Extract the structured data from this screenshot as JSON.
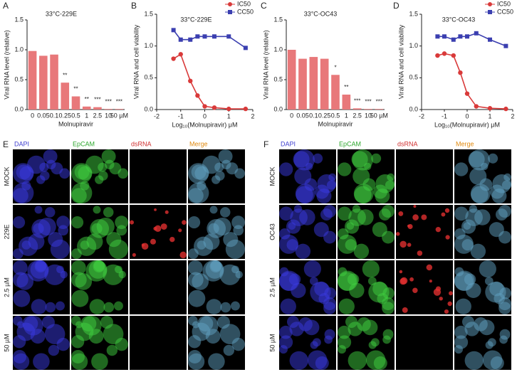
{
  "chart_data": [
    {
      "type": "bar",
      "panel_label": "A",
      "title": "33°C-229E",
      "ylabel": "Viral RNA level (relative)",
      "xlabel": "Molnupiravir",
      "categories": [
        "0",
        "0.05",
        "0.1",
        "0.25",
        "0.5",
        "1",
        "2.5",
        "10",
        "50 µM"
      ],
      "values": [
        0.98,
        0.9,
        0.92,
        0.45,
        0.22,
        0.05,
        0.04,
        0.01,
        0.01
      ],
      "annotations": [
        null,
        null,
        null,
        "**",
        "**",
        "**",
        "***",
        "***",
        "***"
      ],
      "color": "#e8787a",
      "ylim": [
        0,
        1.5
      ],
      "yticks": [
        {
          "value": 0,
          "label": "0.0"
        },
        {
          "value": 0.5,
          "label": "0.5"
        },
        {
          "value": 1,
          "label": "1.0"
        },
        {
          "value": 1.5,
          "label": "1.5"
        }
      ]
    },
    {
      "type": "scatter",
      "panel_label": "B",
      "title": "33°C-229E",
      "ylabel": "Viral RNA and cell viability",
      "xlabel": "Log₁₀(Molnupiravir) μM",
      "x": [
        -1.3,
        -1,
        -0.6,
        -0.3,
        0,
        0.4,
        1,
        1.7
      ],
      "series": [
        {
          "name": "IC50",
          "color": "#d93a3a",
          "marker": "circle",
          "values": [
            0.8,
            0.87,
            0.45,
            0.22,
            0.05,
            0.03,
            0.01,
            0.01
          ]
        },
        {
          "name": "CC50",
          "color": "#3b3fb0",
          "marker": "square",
          "values": [
            1.25,
            1.1,
            1.1,
            1.15,
            1.15,
            1.15,
            1.15,
            0.97
          ]
        }
      ],
      "legend": "upper right",
      "xlim": [
        -2,
        2
      ],
      "xticks": [
        -2,
        -1,
        0,
        1,
        2
      ],
      "ylim": [
        0,
        1.5
      ],
      "yticks": [
        {
          "value": 0,
          "label": "0.0"
        },
        {
          "value": 0.5,
          "label": "0.5"
        },
        {
          "value": 1,
          "label": "1.0"
        },
        {
          "value": 1.5,
          "label": "1.5"
        }
      ]
    },
    {
      "type": "bar",
      "panel_label": "C",
      "title": "33°C-OC43",
      "ylabel": "Viral RNA level (relative)",
      "xlabel": "Molnupiravir",
      "categories": [
        "0",
        "0.05",
        "0.1",
        "0.25",
        "0.5",
        "1",
        "2.5",
        "10",
        "50 µM"
      ],
      "values": [
        1.0,
        0.85,
        0.88,
        0.85,
        0.58,
        0.25,
        0.02,
        0.01,
        0.01
      ],
      "annotations": [
        null,
        null,
        null,
        null,
        "*",
        "**",
        "***",
        "***",
        "***"
      ],
      "color": "#e8787a",
      "ylim": [
        0,
        1.5
      ],
      "yticks": [
        {
          "value": 0,
          "label": "0.0"
        },
        {
          "value": 0.5,
          "label": "0.5"
        },
        {
          "value": 1,
          "label": "1.0"
        },
        {
          "value": 1.5,
          "label": "1.5"
        }
      ]
    },
    {
      "type": "scatter",
      "panel_label": "D",
      "title": "33°C-OC43",
      "ylabel": "Viral RNA and cell viability",
      "xlabel": "Log₁₀(Molnupiravir) μM",
      "x": [
        -1.3,
        -1,
        -0.6,
        -0.3,
        0,
        0.4,
        1,
        1.7
      ],
      "series": [
        {
          "name": "IC50",
          "color": "#d93a3a",
          "marker": "circle",
          "values": [
            0.85,
            0.88,
            0.85,
            0.58,
            0.25,
            0.05,
            0.02,
            0.01
          ]
        },
        {
          "name": "CC50",
          "color": "#3b3fb0",
          "marker": "square",
          "values": [
            1.15,
            1.15,
            1.1,
            1.15,
            1.15,
            1.2,
            1.1,
            1.0
          ]
        }
      ],
      "legend": "upper right",
      "xlim": [
        -2,
        2
      ],
      "xticks": [
        -2,
        -1,
        0,
        1,
        2
      ],
      "ylim": [
        0,
        1.5
      ],
      "yticks": [
        {
          "value": 0,
          "label": "0.0"
        },
        {
          "value": 0.5,
          "label": "0.5"
        },
        {
          "value": 1,
          "label": "1.0"
        },
        {
          "value": 1.5,
          "label": "1.5"
        }
      ]
    }
  ],
  "image_panels": [
    {
      "panel_label": "E",
      "columns": [
        "DAPI",
        "EpCAM",
        "dsRNA",
        "Merge"
      ],
      "column_colors": [
        "#4040d0",
        "#2fa82f",
        "#d03030",
        "#e08a10"
      ],
      "rows": [
        "MOCK",
        "229E",
        "2.5 µM",
        "50 µM"
      ]
    },
    {
      "panel_label": "F",
      "columns": [
        "DAPI",
        "EpCAM",
        "dsRNA",
        "Merge"
      ],
      "column_colors": [
        "#4040d0",
        "#2fa82f",
        "#d03030",
        "#e08a10"
      ],
      "rows": [
        "MOCK",
        "OC43",
        "2.5 µM",
        "50 µM"
      ]
    }
  ]
}
